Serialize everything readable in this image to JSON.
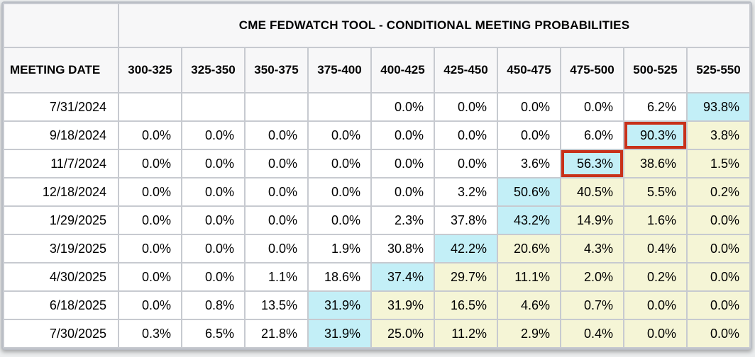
{
  "page": {
    "title": "CME FEDWATCH TOOL - CONDITIONAL MEETING PROBABILITIES",
    "date_column_header": "MEETING DATE"
  },
  "rate_bins": [
    "300-325",
    "325-350",
    "350-375",
    "375-400",
    "400-425",
    "425-450",
    "450-475",
    "475-500",
    "500-525",
    "525-550"
  ],
  "rows": [
    {
      "date": "7/31/2024",
      "cells": [
        {
          "v": ""
        },
        {
          "v": ""
        },
        {
          "v": ""
        },
        {
          "v": ""
        },
        {
          "v": "0.0%"
        },
        {
          "v": "0.0%"
        },
        {
          "v": "0.0%"
        },
        {
          "v": "0.0%"
        },
        {
          "v": "6.2%"
        },
        {
          "v": "93.8%",
          "bg": "cyan"
        }
      ]
    },
    {
      "date": "9/18/2024",
      "cells": [
        {
          "v": "0.0%"
        },
        {
          "v": "0.0%"
        },
        {
          "v": "0.0%"
        },
        {
          "v": "0.0%"
        },
        {
          "v": "0.0%"
        },
        {
          "v": "0.0%"
        },
        {
          "v": "0.0%"
        },
        {
          "v": "6.0%"
        },
        {
          "v": "90.3%",
          "bg": "cyan",
          "box": true
        },
        {
          "v": "3.8%",
          "bg": "yellow"
        }
      ]
    },
    {
      "date": "11/7/2024",
      "cells": [
        {
          "v": "0.0%"
        },
        {
          "v": "0.0%"
        },
        {
          "v": "0.0%"
        },
        {
          "v": "0.0%"
        },
        {
          "v": "0.0%"
        },
        {
          "v": "0.0%"
        },
        {
          "v": "3.6%"
        },
        {
          "v": "56.3%",
          "bg": "cyan",
          "box": true
        },
        {
          "v": "38.6%",
          "bg": "yellow"
        },
        {
          "v": "1.5%",
          "bg": "yellow"
        }
      ]
    },
    {
      "date": "12/18/2024",
      "cells": [
        {
          "v": "0.0%"
        },
        {
          "v": "0.0%"
        },
        {
          "v": "0.0%"
        },
        {
          "v": "0.0%"
        },
        {
          "v": "0.0%"
        },
        {
          "v": "3.2%"
        },
        {
          "v": "50.6%",
          "bg": "cyan"
        },
        {
          "v": "40.5%",
          "bg": "yellow"
        },
        {
          "v": "5.5%",
          "bg": "yellow"
        },
        {
          "v": "0.2%",
          "bg": "yellow"
        }
      ]
    },
    {
      "date": "1/29/2025",
      "cells": [
        {
          "v": "0.0%"
        },
        {
          "v": "0.0%"
        },
        {
          "v": "0.0%"
        },
        {
          "v": "0.0%"
        },
        {
          "v": "2.3%"
        },
        {
          "v": "37.8%"
        },
        {
          "v": "43.2%",
          "bg": "cyan"
        },
        {
          "v": "14.9%",
          "bg": "yellow"
        },
        {
          "v": "1.6%",
          "bg": "yellow"
        },
        {
          "v": "0.0%",
          "bg": "yellow"
        }
      ]
    },
    {
      "date": "3/19/2025",
      "cells": [
        {
          "v": "0.0%"
        },
        {
          "v": "0.0%"
        },
        {
          "v": "0.0%"
        },
        {
          "v": "1.9%"
        },
        {
          "v": "30.8%"
        },
        {
          "v": "42.2%",
          "bg": "cyan"
        },
        {
          "v": "20.6%",
          "bg": "yellow"
        },
        {
          "v": "4.3%",
          "bg": "yellow"
        },
        {
          "v": "0.4%",
          "bg": "yellow"
        },
        {
          "v": "0.0%",
          "bg": "yellow"
        }
      ]
    },
    {
      "date": "4/30/2025",
      "cells": [
        {
          "v": "0.0%"
        },
        {
          "v": "0.0%"
        },
        {
          "v": "1.1%"
        },
        {
          "v": "18.6%"
        },
        {
          "v": "37.4%",
          "bg": "cyan"
        },
        {
          "v": "29.7%",
          "bg": "yellow"
        },
        {
          "v": "11.1%",
          "bg": "yellow"
        },
        {
          "v": "2.0%",
          "bg": "yellow"
        },
        {
          "v": "0.2%",
          "bg": "yellow"
        },
        {
          "v": "0.0%",
          "bg": "yellow"
        }
      ]
    },
    {
      "date": "6/18/2025",
      "cells": [
        {
          "v": "0.0%"
        },
        {
          "v": "0.8%"
        },
        {
          "v": "13.5%"
        },
        {
          "v": "31.9%",
          "bg": "cyan"
        },
        {
          "v": "31.9%",
          "bg": "yellow"
        },
        {
          "v": "16.5%",
          "bg": "yellow"
        },
        {
          "v": "4.6%",
          "bg": "yellow"
        },
        {
          "v": "0.7%",
          "bg": "yellow"
        },
        {
          "v": "0.0%",
          "bg": "yellow"
        },
        {
          "v": "0.0%",
          "bg": "yellow"
        }
      ]
    },
    {
      "date": "7/30/2025",
      "cells": [
        {
          "v": "0.3%"
        },
        {
          "v": "6.5%"
        },
        {
          "v": "21.8%"
        },
        {
          "v": "31.9%",
          "bg": "cyan"
        },
        {
          "v": "25.0%",
          "bg": "yellow"
        },
        {
          "v": "11.2%",
          "bg": "yellow"
        },
        {
          "v": "2.9%",
          "bg": "yellow"
        },
        {
          "v": "0.4%",
          "bg": "yellow"
        },
        {
          "v": "0.0%",
          "bg": "yellow"
        },
        {
          "v": "0.0%",
          "bg": "yellow"
        }
      ]
    }
  ],
  "colors": {
    "cyan_cell": "#c3eff7",
    "yellow_cell": "#f5f5d6",
    "white_cell": "#ffffff",
    "highlight_border": "#c8311a",
    "header_bg": "#f7f7f8",
    "grid_line": "#c7cad0"
  }
}
